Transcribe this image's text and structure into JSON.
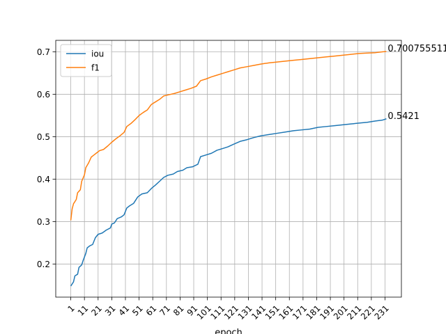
{
  "chart_data": {
    "type": "line",
    "title": "",
    "xlabel": "epoch",
    "ylabel": "",
    "xlim": [
      -10,
      243
    ],
    "ylim": [
      0.122,
      0.727
    ],
    "x_ticks": [
      1,
      11,
      21,
      31,
      41,
      51,
      61,
      71,
      81,
      91,
      101,
      111,
      121,
      131,
      141,
      151,
      161,
      171,
      181,
      191,
      201,
      211,
      221,
      231
    ],
    "x_tick_labels": [
      "1",
      "11",
      "21",
      "31",
      "41",
      "51",
      "61",
      "71",
      "81",
      "91",
      "101",
      "111",
      "121",
      "131",
      "141",
      "151",
      "161",
      "171",
      "181",
      "191",
      "201",
      "211",
      "221",
      "231"
    ],
    "y_ticks": [
      0.2,
      0.3,
      0.4,
      0.5,
      0.6,
      0.7
    ],
    "y_tick_labels": [
      "0.2",
      "0.3",
      "0.4",
      "0.5",
      "0.6",
      "0.7"
    ],
    "grid": true,
    "legend_position": "top-left",
    "series": [
      {
        "name": "iou",
        "color": "#1f77b4",
        "points": [
          [
            1,
            0.148
          ],
          [
            3,
            0.158
          ],
          [
            4,
            0.172
          ],
          [
            6,
            0.176
          ],
          [
            7,
            0.192
          ],
          [
            9,
            0.198
          ],
          [
            10,
            0.208
          ],
          [
            12,
            0.225
          ],
          [
            13,
            0.238
          ],
          [
            15,
            0.243
          ],
          [
            17,
            0.246
          ],
          [
            19,
            0.262
          ],
          [
            21,
            0.27
          ],
          [
            24,
            0.273
          ],
          [
            27,
            0.28
          ],
          [
            30,
            0.285
          ],
          [
            31,
            0.294
          ],
          [
            33,
            0.297
          ],
          [
            35,
            0.307
          ],
          [
            38,
            0.311
          ],
          [
            40,
            0.316
          ],
          [
            42,
            0.332
          ],
          [
            44,
            0.337
          ],
          [
            47,
            0.343
          ],
          [
            50,
            0.358
          ],
          [
            53,
            0.365
          ],
          [
            57,
            0.368
          ],
          [
            60,
            0.378
          ],
          [
            63,
            0.386
          ],
          [
            66,
            0.395
          ],
          [
            69,
            0.404
          ],
          [
            72,
            0.409
          ],
          [
            76,
            0.412
          ],
          [
            79,
            0.418
          ],
          [
            83,
            0.421
          ],
          [
            86,
            0.427
          ],
          [
            90,
            0.429
          ],
          [
            94,
            0.435
          ],
          [
            96,
            0.453
          ],
          [
            100,
            0.457
          ],
          [
            104,
            0.461
          ],
          [
            108,
            0.468
          ],
          [
            112,
            0.472
          ],
          [
            116,
            0.476
          ],
          [
            120,
            0.482
          ],
          [
            125,
            0.489
          ],
          [
            130,
            0.493
          ],
          [
            135,
            0.498
          ],
          [
            140,
            0.502
          ],
          [
            146,
            0.505
          ],
          [
            152,
            0.508
          ],
          [
            158,
            0.511
          ],
          [
            164,
            0.514
          ],
          [
            170,
            0.516
          ],
          [
            176,
            0.518
          ],
          [
            182,
            0.522
          ],
          [
            188,
            0.524
          ],
          [
            194,
            0.526
          ],
          [
            200,
            0.528
          ],
          [
            206,
            0.53
          ],
          [
            212,
            0.532
          ],
          [
            218,
            0.534
          ],
          [
            224,
            0.537
          ],
          [
            229,
            0.539
          ],
          [
            232,
            0.5421
          ]
        ]
      },
      {
        "name": "f1",
        "color": "#ff7f0e",
        "points": [
          [
            1,
            0.303
          ],
          [
            2,
            0.33
          ],
          [
            3,
            0.342
          ],
          [
            5,
            0.352
          ],
          [
            6,
            0.368
          ],
          [
            8,
            0.375
          ],
          [
            9,
            0.395
          ],
          [
            11,
            0.41
          ],
          [
            12,
            0.427
          ],
          [
            14,
            0.438
          ],
          [
            16,
            0.452
          ],
          [
            18,
            0.457
          ],
          [
            20,
            0.462
          ],
          [
            22,
            0.467
          ],
          [
            25,
            0.47
          ],
          [
            28,
            0.478
          ],
          [
            31,
            0.487
          ],
          [
            34,
            0.495
          ],
          [
            37,
            0.502
          ],
          [
            40,
            0.51
          ],
          [
            42,
            0.524
          ],
          [
            45,
            0.531
          ],
          [
            48,
            0.54
          ],
          [
            51,
            0.55
          ],
          [
            54,
            0.557
          ],
          [
            57,
            0.563
          ],
          [
            60,
            0.576
          ],
          [
            63,
            0.582
          ],
          [
            66,
            0.588
          ],
          [
            69,
            0.596
          ],
          [
            73,
            0.599
          ],
          [
            77,
            0.602
          ],
          [
            81,
            0.606
          ],
          [
            85,
            0.61
          ],
          [
            89,
            0.614
          ],
          [
            93,
            0.619
          ],
          [
            96,
            0.632
          ],
          [
            100,
            0.636
          ],
          [
            104,
            0.641
          ],
          [
            108,
            0.645
          ],
          [
            112,
            0.649
          ],
          [
            116,
            0.653
          ],
          [
            120,
            0.657
          ],
          [
            125,
            0.662
          ],
          [
            130,
            0.665
          ],
          [
            135,
            0.668
          ],
          [
            140,
            0.671
          ],
          [
            146,
            0.674
          ],
          [
            152,
            0.676
          ],
          [
            158,
            0.678
          ],
          [
            164,
            0.68
          ],
          [
            170,
            0.682
          ],
          [
            176,
            0.684
          ],
          [
            182,
            0.686
          ],
          [
            188,
            0.688
          ],
          [
            194,
            0.69
          ],
          [
            200,
            0.692
          ],
          [
            206,
            0.694
          ],
          [
            212,
            0.696
          ],
          [
            218,
            0.697
          ],
          [
            224,
            0.698
          ],
          [
            229,
            0.7
          ],
          [
            232,
            0.7008
          ]
        ]
      }
    ],
    "annotations": [
      {
        "text": "0.5421",
        "x": 232,
        "y": 0.5421
      },
      {
        "text": "0.700755511",
        "x": 232,
        "y": 0.7008
      }
    ]
  }
}
